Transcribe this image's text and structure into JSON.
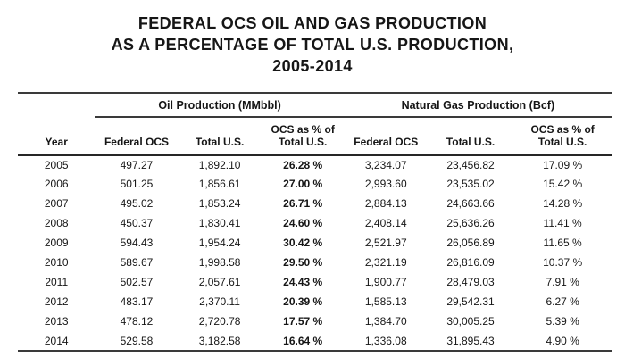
{
  "title": {
    "line1": "FEDERAL OCS OIL AND GAS PRODUCTION",
    "line2": "AS A PERCENTAGE OF TOTAL U.S. PRODUCTION,",
    "line3": "2005-2014"
  },
  "table": {
    "group_headers": {
      "oil": "Oil Production (MMbbl)",
      "gas": "Natural Gas Production (Bcf)"
    },
    "column_headers": [
      "Year",
      "Federal OCS",
      "Total U.S.",
      "OCS as % of\nTotal U.S.",
      "Federal OCS",
      "Total U.S.",
      "OCS as % of\nTotal U.S."
    ],
    "rows": [
      [
        "2005",
        "497.27",
        "1,892.10",
        "26.28 %",
        "3,234.07",
        "23,456.82",
        "17.09 %"
      ],
      [
        "2006",
        "501.25",
        "1,856.61",
        "27.00 %",
        "2,993.60",
        "23,535.02",
        "15.42 %"
      ],
      [
        "2007",
        "495.02",
        "1,853.24",
        "26.71 %",
        "2,884.13",
        "24,663.66",
        "14.28 %"
      ],
      [
        "2008",
        "450.37",
        "1,830.41",
        "24.60 %",
        "2,408.14",
        "25,636.26",
        "11.41 %"
      ],
      [
        "2009",
        "594.43",
        "1,954.24",
        "30.42 %",
        "2,521.97",
        "26,056.89",
        "11.65 %"
      ],
      [
        "2010",
        "589.67",
        "1,998.58",
        "29.50 %",
        "2,321.19",
        "26,816.09",
        "10.37 %"
      ],
      [
        "2011",
        "502.57",
        "2,057.61",
        "24.43 %",
        "1,900.77",
        "28,479.03",
        "7.91 %"
      ],
      [
        "2012",
        "483.17",
        "2,370.11",
        "20.39 %",
        "1,585.13",
        "29,542.31",
        "6.27 %"
      ],
      [
        "2013",
        "478.12",
        "2,720.78",
        "17.57 %",
        "1,384.70",
        "30,005.25",
        "5.39 %"
      ],
      [
        "2014",
        "529.58",
        "3,182.58",
        "16.64 %",
        "1,336.08",
        "31,895.43",
        "4.90 %"
      ]
    ]
  },
  "colors": {
    "background": "#ffffff",
    "text": "#161616",
    "rule": "#3a3a3a",
    "thick_rule": "#262626"
  }
}
